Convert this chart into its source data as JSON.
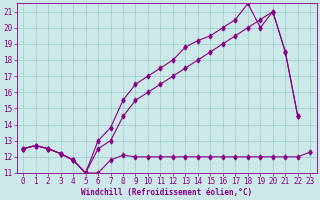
{
  "xlabel": "Windchill (Refroidissement éolien,°C)",
  "bg_color": "#cce8e8",
  "line_color": "#880088",
  "grid_color": "#99cccc",
  "ylim": [
    11,
    21.5
  ],
  "xlim": [
    -0.5,
    23.5
  ],
  "yticks": [
    11,
    12,
    13,
    14,
    15,
    16,
    17,
    18,
    19,
    20,
    21
  ],
  "xticks": [
    0,
    1,
    2,
    3,
    4,
    5,
    6,
    7,
    8,
    9,
    10,
    11,
    12,
    13,
    14,
    15,
    16,
    17,
    18,
    19,
    20,
    21,
    22,
    23
  ],
  "line_bottom_x": [
    0,
    1,
    2,
    3,
    4,
    5,
    6,
    7,
    8,
    9,
    10,
    11,
    12,
    13,
    14,
    15,
    16,
    17,
    18,
    19,
    20,
    21,
    22,
    23
  ],
  "line_bottom_y": [
    12.5,
    12.7,
    12.5,
    12.2,
    11.8,
    11.0,
    11.0,
    11.8,
    12.1,
    12.0,
    12.0,
    12.0,
    12.0,
    12.0,
    12.0,
    12.0,
    12.0,
    12.0,
    12.0,
    12.0,
    12.0,
    12.0,
    12.0,
    12.3
  ],
  "line_mid_x": [
    0,
    1,
    2,
    3,
    4,
    5,
    6,
    7,
    8,
    9,
    10,
    11,
    12,
    13,
    14,
    15,
    16,
    17,
    18,
    19,
    20,
    21,
    22
  ],
  "line_mid_y": [
    12.5,
    12.7,
    12.5,
    12.2,
    11.8,
    11.0,
    12.5,
    13.0,
    14.5,
    15.5,
    16.0,
    16.5,
    17.0,
    17.5,
    18.0,
    18.5,
    19.0,
    19.5,
    20.0,
    20.5,
    21.0,
    18.5,
    14.5
  ],
  "line_top_x": [
    0,
    1,
    2,
    3,
    4,
    5,
    6,
    7,
    8,
    9,
    10,
    11,
    12,
    13,
    14,
    15,
    16,
    17,
    18,
    19,
    20,
    21,
    22
  ],
  "line_top_y": [
    12.5,
    12.7,
    12.5,
    12.2,
    11.8,
    11.0,
    13.0,
    13.8,
    15.5,
    16.5,
    17.0,
    17.5,
    18.0,
    18.8,
    19.2,
    19.5,
    20.0,
    20.5,
    21.5,
    20.0,
    21.0,
    18.5,
    14.5
  ]
}
